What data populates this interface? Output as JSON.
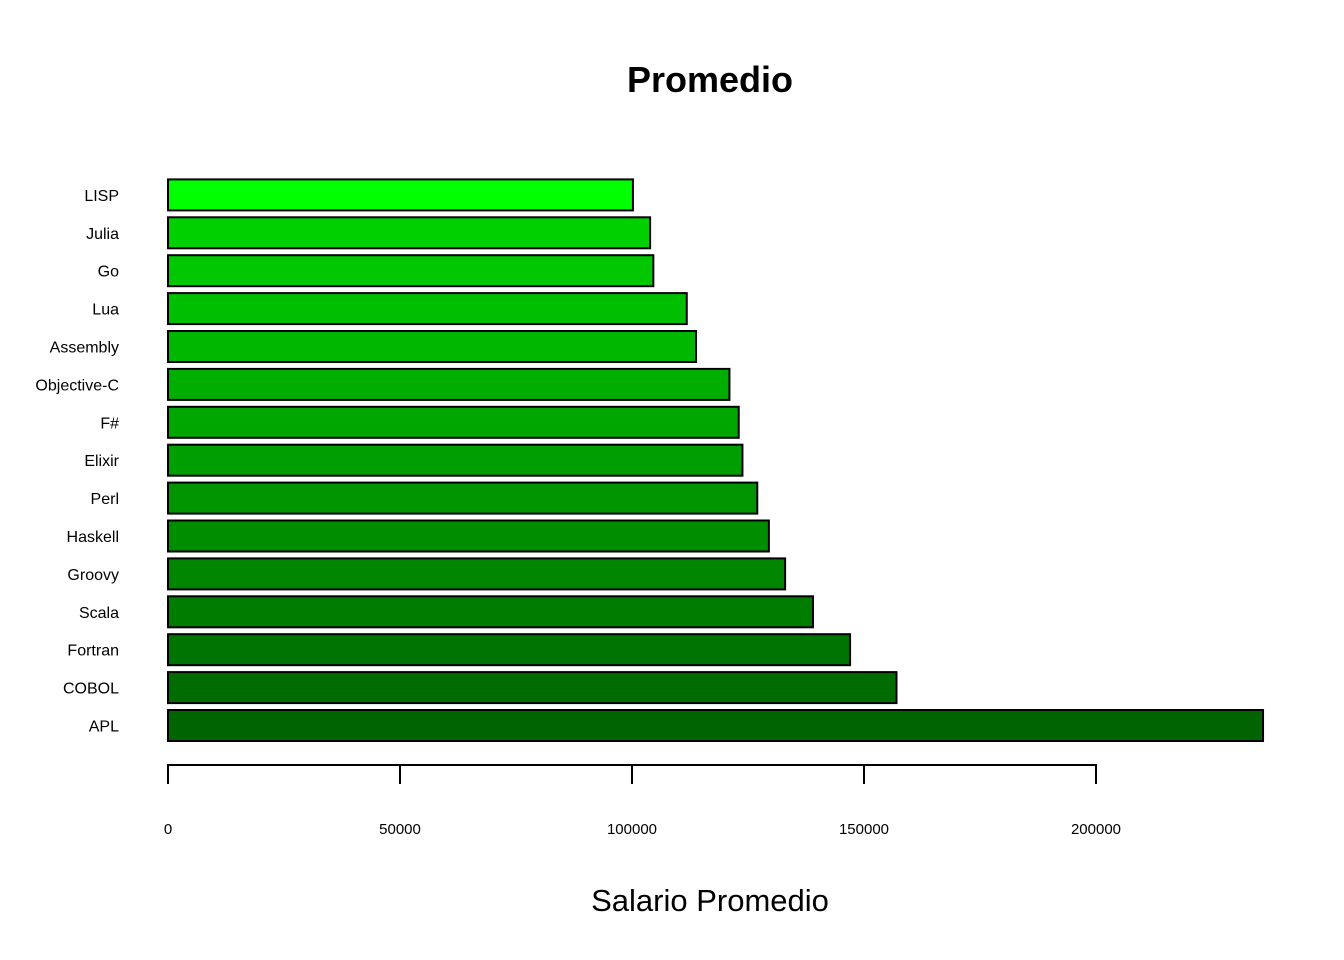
{
  "chart_data": {
    "type": "bar",
    "orientation": "horizontal",
    "title": "Promedio",
    "xlabel": "Salario Promedio",
    "ylabel": "",
    "categories": [
      "APL",
      "COBOL",
      "Fortran",
      "Scala",
      "Groovy",
      "Haskell",
      "Perl",
      "Elixir",
      "F#",
      "Objective-C",
      "Assembly",
      "Lua",
      "Go",
      "Julia",
      "LISP"
    ],
    "values": [
      236000,
      157000,
      147000,
      139000,
      133000,
      129500,
      127000,
      123800,
      123000,
      121000,
      113800,
      111800,
      104600,
      103900,
      100200
    ],
    "colors": [
      "#006400",
      "#006c00",
      "#007400",
      "#007c00",
      "#008500",
      "#008d00",
      "#009500",
      "#009e00",
      "#00a600",
      "#00ae00",
      "#00b700",
      "#00bf00",
      "#00c700",
      "#00d000",
      "#00ff00"
    ],
    "xticks": [
      0,
      50000,
      100000,
      150000,
      200000
    ],
    "xlim": [
      0,
      236000
    ],
    "grid": false,
    "legend": "none"
  }
}
